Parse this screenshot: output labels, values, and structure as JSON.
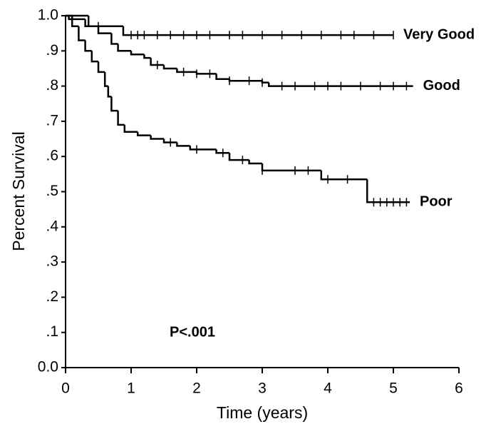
{
  "chart_data": {
    "type": "step",
    "xlabel": "Time (years)",
    "ylabel": "Percent Survival",
    "annotation": "P<.001",
    "xlim": [
      0,
      6
    ],
    "xticks": [
      0,
      1,
      2,
      3,
      4,
      5,
      6
    ],
    "ylim": [
      0,
      1
    ],
    "yticks": [
      {
        "value": 0,
        "label": "0.0"
      },
      {
        "value": 0.1,
        "label": ".1"
      },
      {
        "value": 0.2,
        "label": ".2"
      },
      {
        "value": 0.3,
        "label": ".3"
      },
      {
        "value": 0.4,
        "label": ".4"
      },
      {
        "value": 0.5,
        "label": ".5"
      },
      {
        "value": 0.6,
        "label": ".6"
      },
      {
        "value": 0.7,
        "label": ".7"
      },
      {
        "value": 0.8,
        "label": ".8"
      },
      {
        "value": 0.9,
        "label": ".9"
      },
      {
        "value": 1,
        "label": "1.0"
      }
    ],
    "series": [
      {
        "name": "Very Good",
        "color": "#000000",
        "x": [
          0,
          0.35,
          0.88,
          5.0
        ],
        "values": [
          1.0,
          0.97,
          0.945,
          0.945
        ],
        "censored": [
          0.5,
          1.0,
          1.1,
          1.2,
          1.4,
          1.6,
          1.8,
          2.0,
          2.2,
          2.5,
          2.7,
          3.0,
          3.3,
          3.6,
          3.9,
          4.2,
          4.4,
          4.7,
          5.0
        ]
      },
      {
        "name": "Good",
        "color": "#000000",
        "x": [
          0,
          0.1,
          0.3,
          0.5,
          0.7,
          0.8,
          1.0,
          1.2,
          1.3,
          1.5,
          1.7,
          2.0,
          2.3,
          2.5,
          3.0,
          3.1,
          5.3
        ],
        "values": [
          1.0,
          0.99,
          0.97,
          0.95,
          0.92,
          0.9,
          0.89,
          0.88,
          0.86,
          0.85,
          0.84,
          0.835,
          0.82,
          0.815,
          0.81,
          0.8,
          0.8
        ],
        "censored": [
          1.4,
          1.8,
          2.0,
          2.2,
          2.5,
          2.8,
          3.0,
          3.3,
          3.5,
          3.8,
          4.0,
          4.2,
          4.5,
          4.8,
          5.0,
          5.2
        ]
      },
      {
        "name": "Poor",
        "color": "#000000",
        "x": [
          0,
          0.05,
          0.1,
          0.2,
          0.3,
          0.4,
          0.5,
          0.6,
          0.65,
          0.7,
          0.8,
          0.9,
          1.1,
          1.3,
          1.5,
          1.7,
          1.9,
          2.3,
          2.5,
          2.8,
          3.0,
          3.9,
          4.6,
          5.25
        ],
        "values": [
          1.0,
          0.99,
          0.97,
          0.93,
          0.9,
          0.87,
          0.84,
          0.8,
          0.77,
          0.73,
          0.69,
          0.67,
          0.66,
          0.65,
          0.64,
          0.63,
          0.62,
          0.61,
          0.59,
          0.58,
          0.56,
          0.535,
          0.47,
          0.47
        ],
        "censored": [
          1.6,
          2.0,
          2.4,
          2.7,
          3.0,
          3.5,
          3.7,
          4.0,
          4.3,
          4.7,
          4.8,
          4.9,
          5.0,
          5.1,
          5.2
        ]
      }
    ]
  }
}
